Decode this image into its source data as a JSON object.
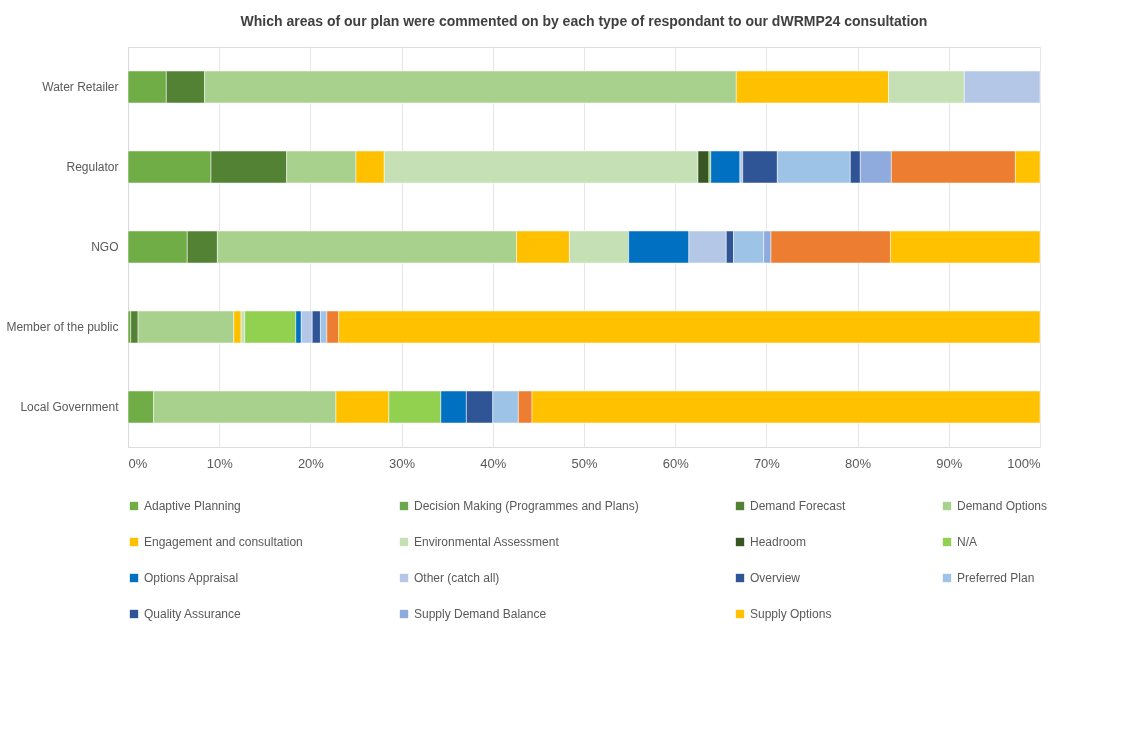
{
  "chart_data": {
    "type": "bar",
    "orientation": "horizontal",
    "stacked": true,
    "title": "Which areas of our plan were commented on by each type of respondant to our dWRMP24 consultation",
    "categories": [
      "Water Retailer",
      "Regulator",
      "NGO",
      "Member of the public",
      "Local Government"
    ],
    "xlim": [
      0,
      100
    ],
    "xticks": [
      {
        "value": 0,
        "label": "0%"
      },
      {
        "value": 10,
        "label": "10%"
      },
      {
        "value": 20,
        "label": "20%"
      },
      {
        "value": 30,
        "label": "30%"
      },
      {
        "value": 40,
        "label": "40%"
      },
      {
        "value": 50,
        "label": "50%"
      },
      {
        "value": 60,
        "label": "60%"
      },
      {
        "value": 70,
        "label": "70%"
      },
      {
        "value": 80,
        "label": "80%"
      },
      {
        "value": 90,
        "label": "90%"
      },
      {
        "value": 100,
        "label": "100%"
      }
    ],
    "grid": "x",
    "legend": "bottom",
    "series": [
      {
        "name": "Adaptive Planning",
        "color": "#70ad47",
        "values": [
          4.2,
          9.1,
          6.5,
          0.3,
          2.8
        ]
      },
      {
        "name": "Decision Making (Programmes and Plans)",
        "color": "#6aa84f",
        "values": [
          null,
          null,
          null,
          null,
          null
        ]
      },
      {
        "name": "Demand Forecast",
        "color": "#548235",
        "values": [
          4.2,
          8.3,
          3.3,
          0.8,
          null
        ]
      },
      {
        "name": "Demand Options",
        "color": "#a9d18e",
        "values": [
          58.3,
          7.6,
          32.8,
          10.5,
          20.0
        ]
      },
      {
        "name": "Engagement and consultation",
        "color": "#ffc000",
        "values": [
          16.7,
          3.1,
          5.8,
          0.8,
          5.8
        ]
      },
      {
        "name": "Environmental Assessment",
        "color": "#c5e0b4",
        "values": [
          8.3,
          34.4,
          6.5,
          0.4,
          null
        ]
      },
      {
        "name": "Headroom",
        "color": "#375623",
        "values": [
          null,
          1.2,
          null,
          null,
          null
        ]
      },
      {
        "name": "N/A",
        "color": "#92d050",
        "values": [
          null,
          0.2,
          null,
          5.6,
          5.7
        ]
      },
      {
        "name": "Options Appraisal",
        "color": "#0070c0",
        "values": [
          null,
          3.2,
          6.6,
          0.6,
          2.8
        ]
      },
      {
        "name": "Other (catch all)",
        "color": "#b4c7e7",
        "values": [
          8.3,
          0.3,
          4.1,
          1.2,
          null
        ]
      },
      {
        "name": "Overview",
        "color": "#2f5597",
        "values": [
          null,
          3.8,
          0.8,
          0.9,
          2.9
        ]
      },
      {
        "name": "Preferred Plan",
        "color": "#9dc3e6",
        "values": [
          null,
          8.0,
          3.3,
          0.7,
          2.8
        ]
      },
      {
        "name": "Quality Assurance",
        "color": "#2e5496",
        "values": [
          null,
          1.1,
          null,
          null,
          null
        ]
      },
      {
        "name": "Supply Demand Balance",
        "color": "#8faadc",
        "values": [
          null,
          3.4,
          0.8,
          null,
          null
        ]
      },
      {
        "color": "#ed7d31",
        "values": [
          null,
          13.6,
          13.1,
          1.3,
          1.5
        ]
      },
      {
        "name": "Supply Options",
        "color": "#ffc100",
        "values": [
          null,
          2.7,
          16.4,
          76.9,
          55.7
        ]
      }
    ]
  }
}
